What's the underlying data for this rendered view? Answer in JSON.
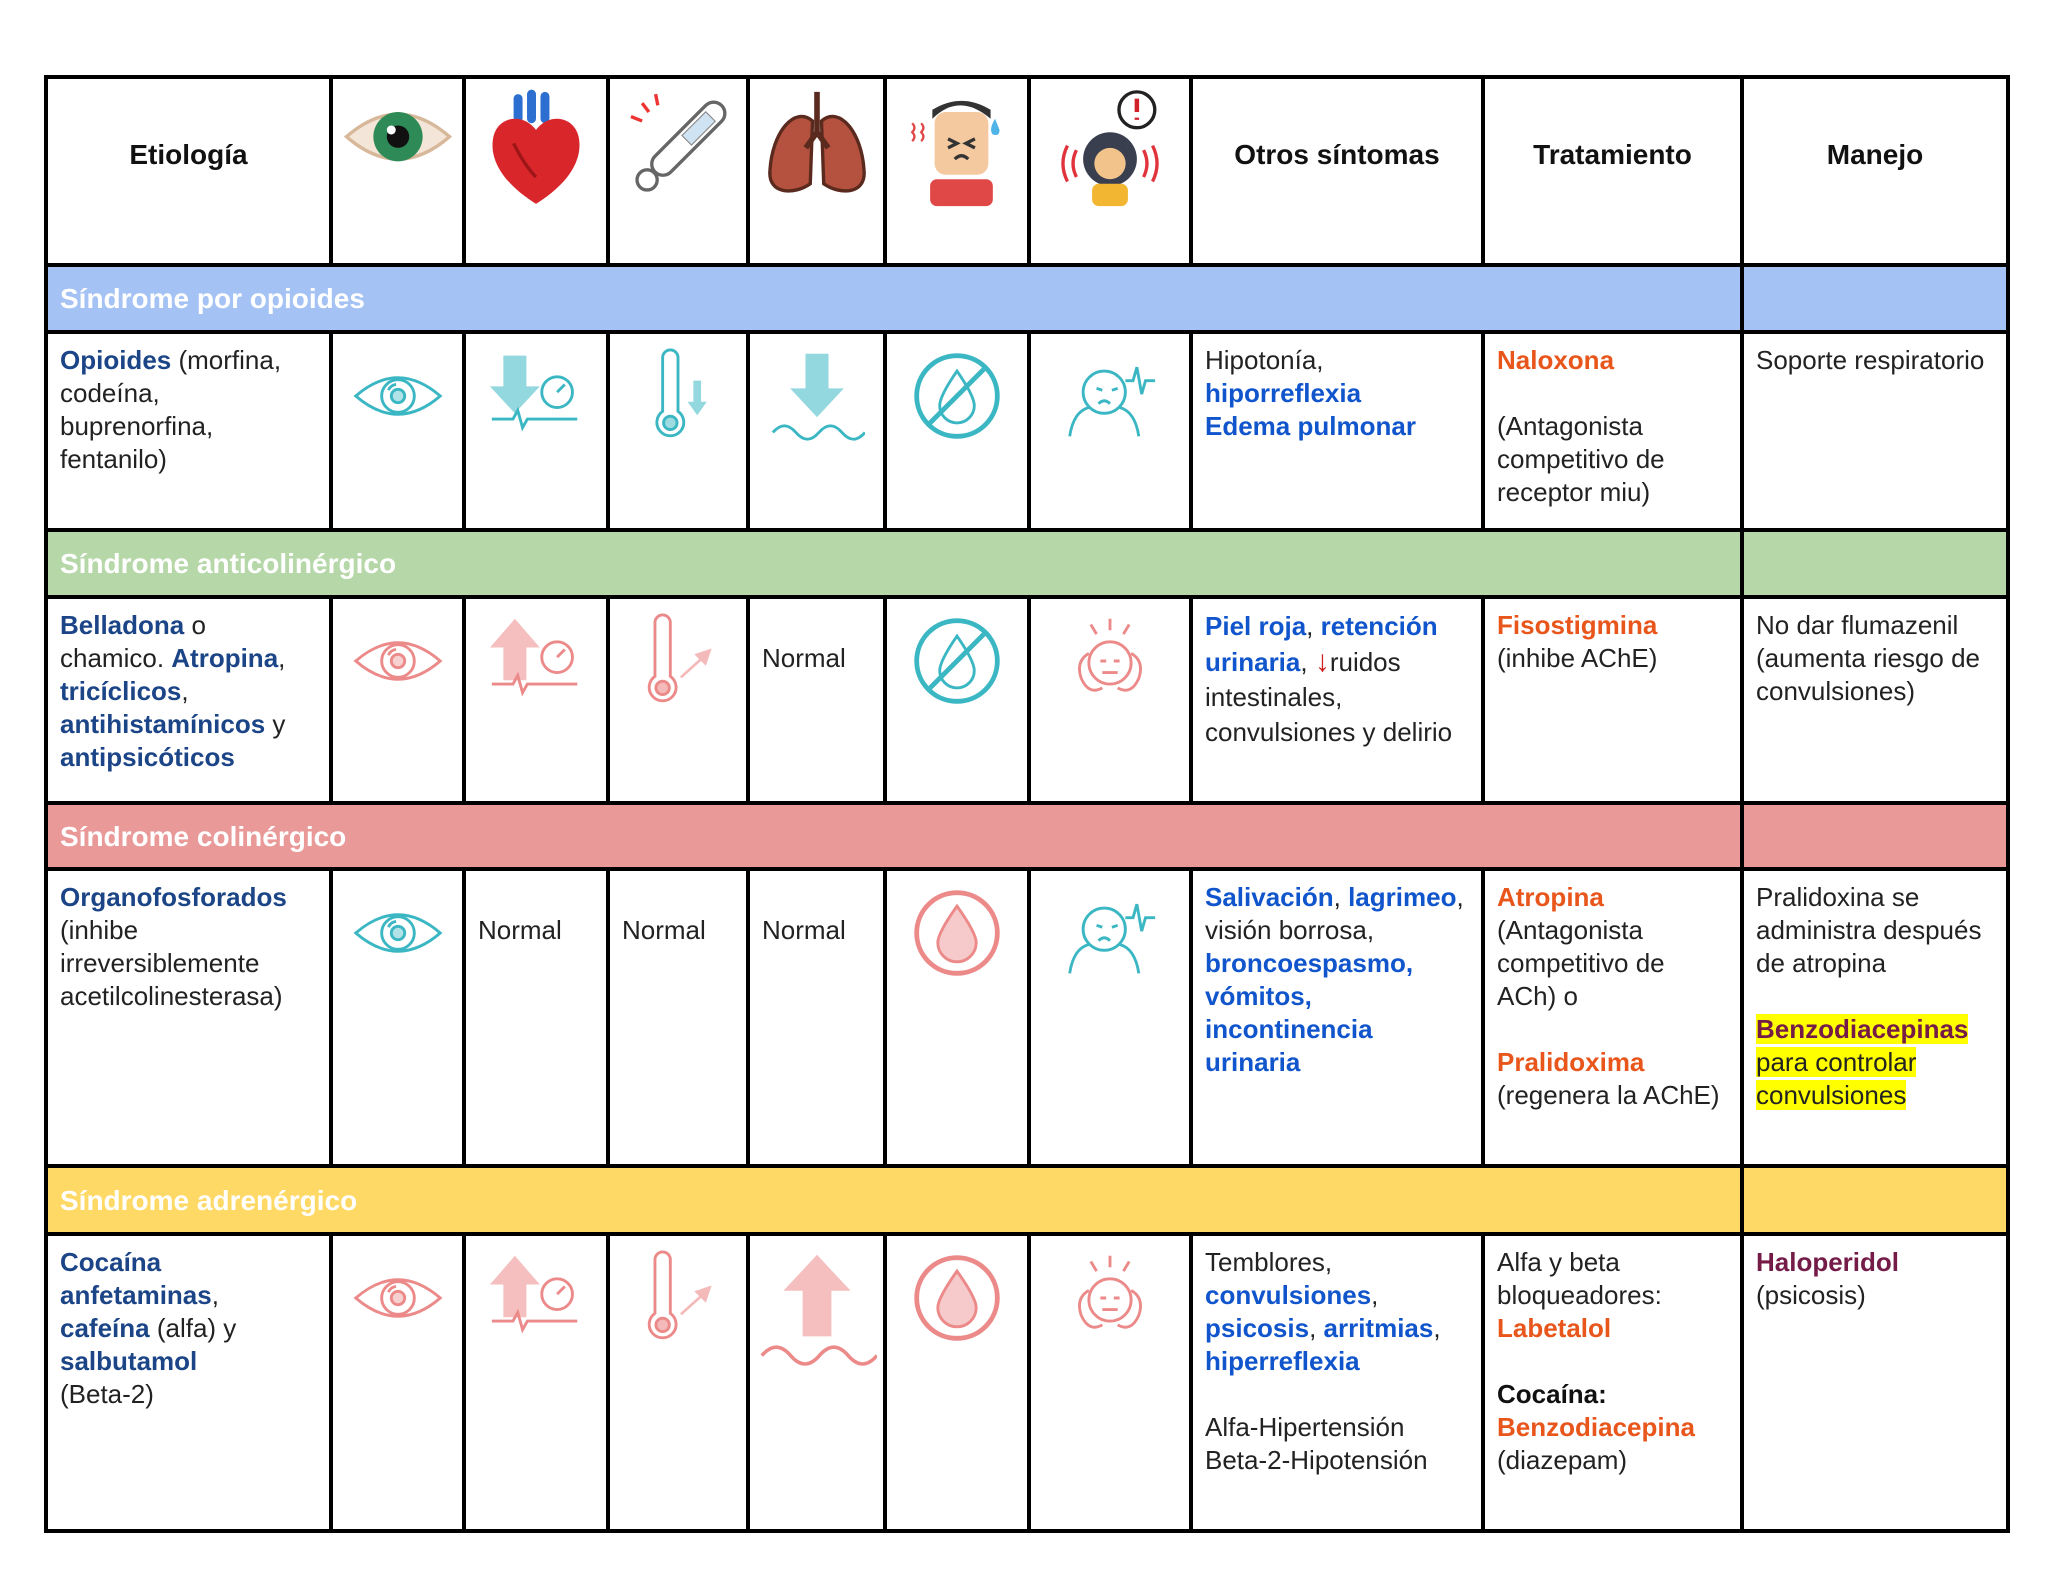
{
  "header": {
    "etiology": "Etiología",
    "other_symptoms": "Otros síntomas",
    "treatment": "Tratamiento",
    "management": "Manejo"
  },
  "sections": [
    {
      "title": "Síndrome por opioides",
      "etiology": [
        "Opioides",
        " (morfina, codeína, buprenorfina, fentanilo)"
      ],
      "other_symptoms": [
        "Hipotonía,",
        "hiporreflexia",
        "Edema pulmonar"
      ],
      "treatment": [
        "Naloxona",
        "(Antagonista competitivo de receptor miu)"
      ],
      "management": [
        "Soporte respiratorio"
      ]
    },
    {
      "title": "Síndrome anticolinérgico",
      "etiology": [
        "Belladona",
        " o chamico. ",
        "Atropina",
        ", ",
        "tricíclicos",
        ", ",
        "antihistamínicos",
        " y ",
        "antipsicóticos"
      ],
      "respiration": "Normal",
      "other_symptoms": [
        "Piel roja",
        ", ",
        "retención urinaria",
        ", ",
        "↓",
        "ruidos intestinales, convulsiones y delirio"
      ],
      "treatment": [
        "Fisostigmina",
        "(inhibe AChE)"
      ],
      "management": [
        "No dar flumazenil (aumenta riesgo de convulsiones)"
      ]
    },
    {
      "title": "Síndrome colinérgico",
      "etiology": [
        "Organofosforados",
        "(inhibe irreversiblemente acetilcolinesterasa)"
      ],
      "heart_rate": "Normal",
      "temperature": "Normal",
      "respiration": "Normal",
      "other_symptoms": [
        "Salivación",
        ", ",
        "lagrimeo",
        ", visión borrosa, ",
        "broncoespasmo,",
        " ",
        "vómitos,",
        " ",
        "incontinencia urinaria"
      ],
      "treatment": [
        "Atropina",
        "(Antagonista competitivo de ACh) o",
        "Pralidoxima",
        "(regenera la AChE)"
      ],
      "management": [
        "Pralidoxina se administra después de atropina",
        "Benzodiacepinas",
        " para controlar convulsiones"
      ]
    },
    {
      "title": "Síndrome adrenérgico",
      "etiology": [
        "Cocaína",
        "anfetaminas",
        ", ",
        "cafeína",
        " (alfa) y ",
        "salbutamol",
        "(Beta-2)"
      ],
      "other_symptoms": [
        "Temblores,",
        "convulsiones",
        ", ",
        "psicosis",
        ", ",
        "arritmias",
        ", ",
        "hiperreflexia",
        "Alfa-Hipertensión",
        "Beta-2-Hipotensión"
      ],
      "treatment": [
        "Alfa y beta bloqueadores:",
        "Labetalol",
        "Cocaína:",
        "Benzodiacepina",
        "(diazepam)"
      ],
      "management": [
        "Haloperidol",
        "(psicosis)"
      ]
    }
  ]
}
